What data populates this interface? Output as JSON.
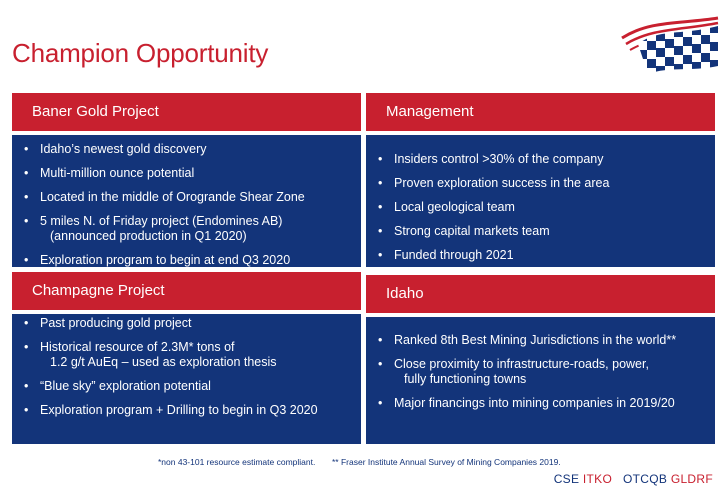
{
  "title": "Champion Opportunity",
  "panels": {
    "baner": {
      "heading": "Baner Gold Project",
      "items": [
        "Idaho’s newest gold discovery",
        "Multi-million ounce potential",
        "Located in the middle of Orogrande Shear Zone",
        "5 miles N. of Friday project (Endomines AB)",
        "(announced production in Q1 2020)",
        "Exploration program to begin at end Q3 2020"
      ]
    },
    "management": {
      "heading": "Management",
      "items": [
        "Insiders control >30% of the company",
        "Proven exploration success in the area",
        "Local geological team",
        "Strong capital markets team",
        "Funded through 2021"
      ]
    },
    "champagne": {
      "heading": "Champagne Project",
      "items": [
        "Past producing gold project",
        "Historical resource of 2.3M* tons of",
        "1.2 g/t AuEq – used as exploration thesis",
        "“Blue sky” exploration potential",
        "Exploration program + Drilling to begin in Q3 2020"
      ]
    },
    "idaho": {
      "heading": "Idaho",
      "items": [
        "Ranked 8th Best Mining Jurisdictions in the world**",
        "Close proximity to infrastructure-roads, power,",
        "fully functioning towns",
        "Major financings into mining companies in 2019/20"
      ]
    }
  },
  "footnotes": {
    "resource": "*non 43-101 resource estimate compliant.",
    "fraser": "** Fraser Institute Annual Survey of Mining Companies 2019."
  },
  "exchange": {
    "cse": "CSE",
    "cse_ticker": "ITKO",
    "otc": "OTCQB",
    "otc_ticker": "GLDRF"
  },
  "colors": {
    "red": "#c8202f",
    "navy": "#13347a"
  },
  "logo_icon": "checkered-flag-logo"
}
